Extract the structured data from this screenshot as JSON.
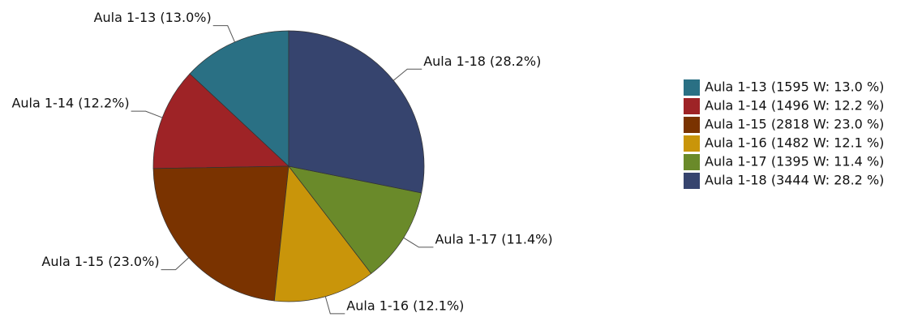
{
  "chart_data": {
    "type": "pie",
    "categories": [
      "Aula 1-13",
      "Aula 1-14",
      "Aula 1-15",
      "Aula 1-16",
      "Aula 1-17",
      "Aula 1-18"
    ],
    "values": [
      1595,
      1496,
      2818,
      1482,
      1395,
      3444
    ],
    "value_labels": [
      "Aula 1-13 (13.0%)",
      "Aula 1-14 (12.2%)",
      "Aula 1-15 (23.0%)",
      "Aula 1-16 (12.1%)",
      "Aula 1-17 (11.4%)",
      "Aula 1-18 (28.2%)"
    ],
    "legend": [
      "Aula 1-13 (1595 W: 13.0 %)",
      "Aula 1-14 (1496 W: 12.2 %)",
      "Aula 1-15 (2818 W: 23.0 %)",
      "Aula 1-16 (1482 W: 12.1 %)",
      "Aula 1-17 (1395 W: 11.4 %)",
      "Aula 1-18 (3444 W: 28.2 %)"
    ],
    "colors": [
      "#2a7084",
      "#9e2326",
      "#7a3300",
      "#c9950a",
      "#6a8a2a",
      "#36446e"
    ],
    "legend_position": "right"
  }
}
